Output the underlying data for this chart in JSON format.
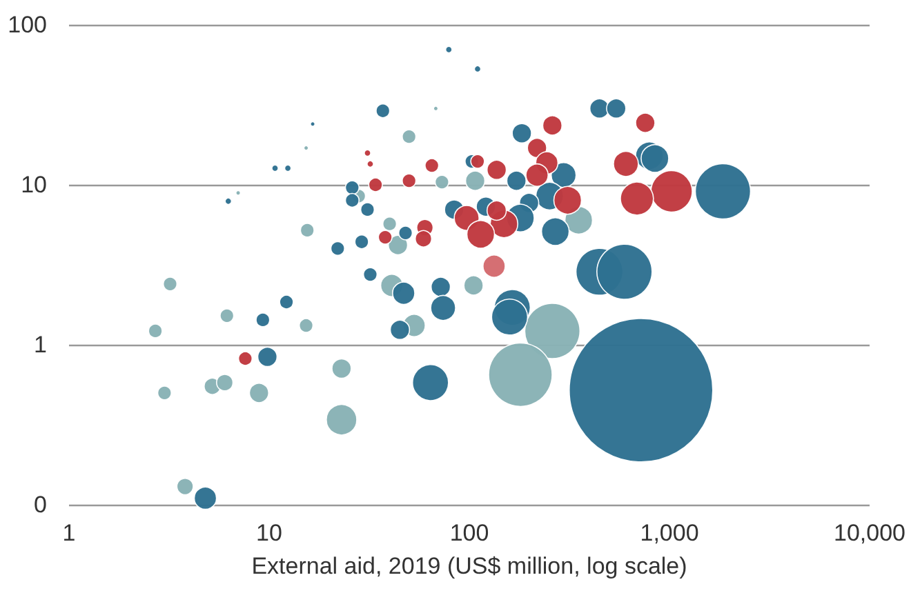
{
  "chart_data": {
    "type": "bubble",
    "xlabel": "External aid, 2019 (US$ million, log scale)",
    "xlim": [
      1,
      10000
    ],
    "xticks": [
      1,
      10,
      100,
      {
        "value": 1000,
        "label": "1,000"
      },
      {
        "value": 10000,
        "label": "10,000"
      }
    ],
    "ylim": [
      0.1,
      100
    ],
    "yticks": [
      {
        "value": 0.1,
        "label": "0"
      },
      1,
      10,
      100
    ],
    "log": "xy",
    "grid": "y",
    "series": [
      {
        "color": "#88b2b5",
        "x": [
          68,
          15.3,
          50,
          7.0,
          28,
          73,
          107,
          15.5,
          40,
          44,
          352,
          3.2,
          41,
          105,
          6.15,
          15.3,
          2.7,
          53,
          23,
          5.2,
          6.0,
          3.0,
          8.9,
          23,
          3.8,
          260,
          180
        ],
        "values": [
          30,
          17,
          20,
          8.9,
          8.5,
          10.4,
          10.6,
          5.2,
          5.7,
          4.2,
          6.0,
          2.4,
          2.35,
          2.35,
          1.52,
          1.32,
          1.22,
          1.32,
          0.71,
          0.55,
          0.58,
          0.5,
          0.5,
          0.34,
          0.13,
          1.22,
          0.65
        ],
        "sizes": [
          0.001,
          0.001,
          0.009,
          0.001,
          0.009,
          0.009,
          0.018,
          0.009,
          0.009,
          0.018,
          0.037,
          0.009,
          0.024,
          0.018,
          0.009,
          0.009,
          0.009,
          0.024,
          0.018,
          0.013,
          0.013,
          0.009,
          0.018,
          0.045,
          0.013,
          0.148,
          0.196
        ]
      },
      {
        "color": "#2e7191",
        "x": [
          79,
          110,
          37,
          16.5,
          10.7,
          12.4,
          6.25,
          26,
          26,
          31,
          22,
          29,
          32,
          47,
          72,
          74,
          45,
          12.2,
          9.3,
          9.8,
          4.8,
          64,
          721,
          1850,
          447,
          596,
          794,
          846,
          447,
          542,
          183,
          296,
          103,
          172,
          252,
          199,
          180,
          121,
          84,
          269,
          164,
          159,
          48
        ],
        "values": [
          70,
          53,
          29,
          24,
          12.7,
          12.7,
          7.9,
          9.6,
          8.0,
          7.0,
          4.0,
          4.4,
          2.75,
          2.1,
          2.3,
          1.7,
          1.24,
          1.85,
          1.43,
          0.84,
          0.11,
          0.58,
          0.52,
          9.1,
          2.86,
          2.86,
          15.2,
          14.6,
          30,
          30,
          21,
          11.5,
          14,
          10.6,
          8.5,
          7.7,
          6.2,
          7.3,
          7.0,
          5.1,
          1.71,
          1.49,
          5.0
        ],
        "sizes": [
          0.002,
          0.002,
          0.009,
          0.001,
          0.002,
          0.002,
          0.002,
          0.009,
          0.009,
          0.009,
          0.009,
          0.009,
          0.009,
          0.024,
          0.018,
          0.03,
          0.018,
          0.009,
          0.009,
          0.018,
          0.024,
          0.063,
          1,
          0.148,
          0.107,
          0.148,
          0.037,
          0.037,
          0.018,
          0.018,
          0.018,
          0.03,
          0.009,
          0.018,
          0.037,
          0.018,
          0.037,
          0.018,
          0.018,
          0.037,
          0.063,
          0.063,
          0.009
        ]
      },
      {
        "color": "#c0393f",
        "x": [
          31,
          32,
          65,
          110,
          34,
          50,
          38,
          60,
          59,
          7.6,
          260,
          757,
          218,
          244,
          606,
          137,
          218,
          1025,
          688,
          310,
          149,
          137,
          97,
          114
        ],
        "values": [
          15.8,
          13.5,
          13.2,
          14,
          10,
          10.6,
          4.7,
          5.4,
          4.6,
          0.82,
          23.5,
          24.4,
          17,
          13.7,
          13.5,
          12.4,
          11.5,
          9.1,
          8.2,
          8.0,
          5.7,
          6.9,
          6.2,
          4.9
        ],
        "sizes": [
          0.002,
          0.002,
          0.009,
          0.009,
          0.009,
          0.009,
          0.009,
          0.013,
          0.013,
          0.009,
          0.018,
          0.018,
          0.018,
          0.024,
          0.03,
          0.018,
          0.024,
          0.083,
          0.053,
          0.037,
          0.037,
          0.018,
          0.03,
          0.037
        ]
      },
      {
        "color": "#d46a6e",
        "x": [
          133
        ],
        "values": [
          3.1
        ],
        "sizes": [
          0.024
        ]
      }
    ]
  }
}
